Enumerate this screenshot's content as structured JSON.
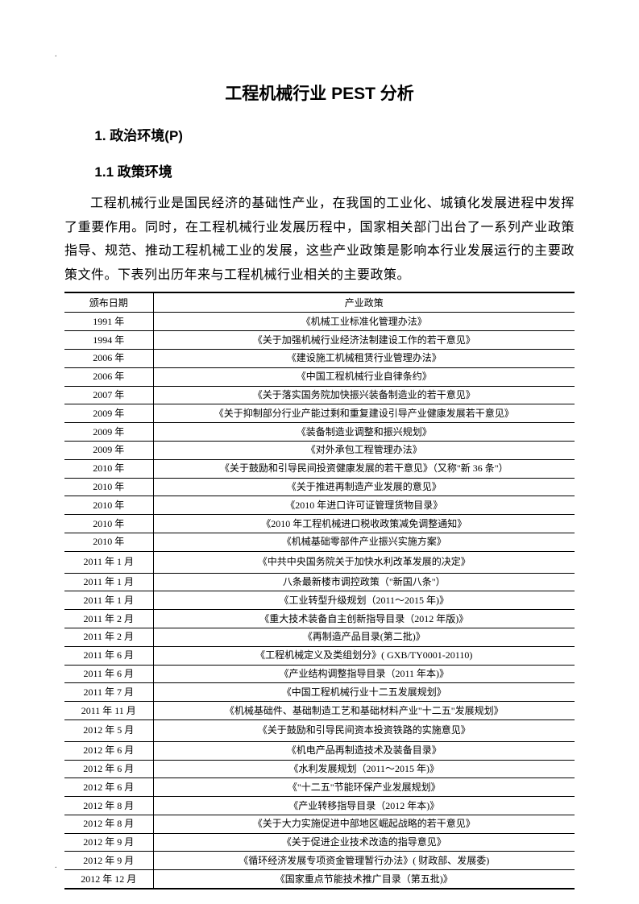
{
  "title": "工程机械行业 PEST 分析",
  "heading1": "1. 政治环境(P)",
  "heading2": "1.1 政策环境",
  "paragraph": "工程机械行业是国民经济的基础性产业，在我国的工业化、城镇化发展进程中发挥了重要作用。同时，在工程机械行业发展历程中，国家相关部门出台了一系列产业政策指导、规范、推动工程机械工业的发展，这些产业政策是影响本行业发展运行的主要政策文件。下表列出历年来与工程机械行业相关的主要政策。",
  "table": {
    "headers": [
      "颁布日期",
      "产业政策"
    ],
    "rows": [
      {
        "date": "1991 年",
        "policy": "《机械工业标准化管理办法》"
      },
      {
        "date": "1994 年",
        "policy": "《关于加强机械行业经济法制建设工作的若干意见》"
      },
      {
        "date": "2006 年",
        "policy": "《建设施工机械租赁行业管理办法》"
      },
      {
        "date": "2006 年",
        "policy": "《中国工程机械行业自律条约》"
      },
      {
        "date": "2007 年",
        "policy": "《关于落实国务院加快振兴装备制造业的若干意见》"
      },
      {
        "date": "2009 年",
        "policy": "《关于抑制部分行业产能过剩和重复建设引导产业健康发展若干意见》"
      },
      {
        "date": "2009 年",
        "policy": "《装备制造业调整和振兴规划》"
      },
      {
        "date": "2009 年",
        "policy": "《对外承包工程管理办法》"
      },
      {
        "date": "2010 年",
        "policy": "《关于鼓励和引导民间投资健康发展的若干意见》（又称\"新 36 条\"）"
      },
      {
        "date": "2010 年",
        "policy": "《关于推进再制造产业发展的意见》"
      },
      {
        "date": "2010 年",
        "policy": "《2010 年进口许可证管理货物目录》"
      },
      {
        "date": "2010 年",
        "policy": "《2010 年工程机械进口税收政策减免调整通知》"
      },
      {
        "date": "2010 年",
        "policy": "《机械基础零部件产业振兴实施方案》"
      },
      {
        "date": "2011 年 1 月",
        "policy": "《中共中央国务院关于加快水利改革发展的决定》",
        "gap": true
      },
      {
        "date": "2011 年 1 月",
        "policy": "八条最新楼市调控政策（\"新国八条\"）"
      },
      {
        "date": "2011 年 1 月",
        "policy": "《工业转型升级规划（2011～2015 年)》"
      },
      {
        "date": "2011 年 2 月",
        "policy": "《重大技术装备自主创新指导目录（2012 年版)》"
      },
      {
        "date": "2011 年 2 月",
        "policy": "《再制造产品目录(第二批)》"
      },
      {
        "date": "2011 年 6 月",
        "policy": "《工程机械定义及类组划分》( GXB/TY0001-20110)"
      },
      {
        "date": "2011 年 6 月",
        "policy": "《产业结构调整指导目录（2011 年本)》"
      },
      {
        "date": "2011 年 7 月",
        "policy": "《中国工程机械行业十二五发展规划》"
      },
      {
        "date": "2011 年 11 月",
        "policy": "《机械基础件、基础制造工艺和基础材料产业\"十二五\"发展规划》"
      },
      {
        "date": "2012 年 5 月",
        "policy": "《关于鼓励和引导民间资本投资铁路的实施意见》",
        "gap": true
      },
      {
        "date": "2012 年 6 月",
        "policy": "《机电产品再制造技术及装备目录》"
      },
      {
        "date": "2012 年 6 月",
        "policy": "《水利发展规划（2011～2015 年)》"
      },
      {
        "date": "2012 年 6 月",
        "policy": "《\"十二五\"节能环保产业发展规划》"
      },
      {
        "date": "2012 年 8 月",
        "policy": "《产业转移指导目录（2012 年本)》"
      },
      {
        "date": "2012 年 8 月",
        "policy": "《关于大力实施促进中部地区崛起战略的若干意见》"
      },
      {
        "date": "2012 年 9 月",
        "policy": "《关于促进企业技术改造的指导意见》"
      },
      {
        "date": "2012 年 9 月",
        "policy": "《循环经济发展专项资金管理暂行办法》( 财政部、发展委)"
      },
      {
        "date": "2012 年 12 月",
        "policy": "《国家重点节能技术推广目录（第五批)》"
      }
    ]
  }
}
